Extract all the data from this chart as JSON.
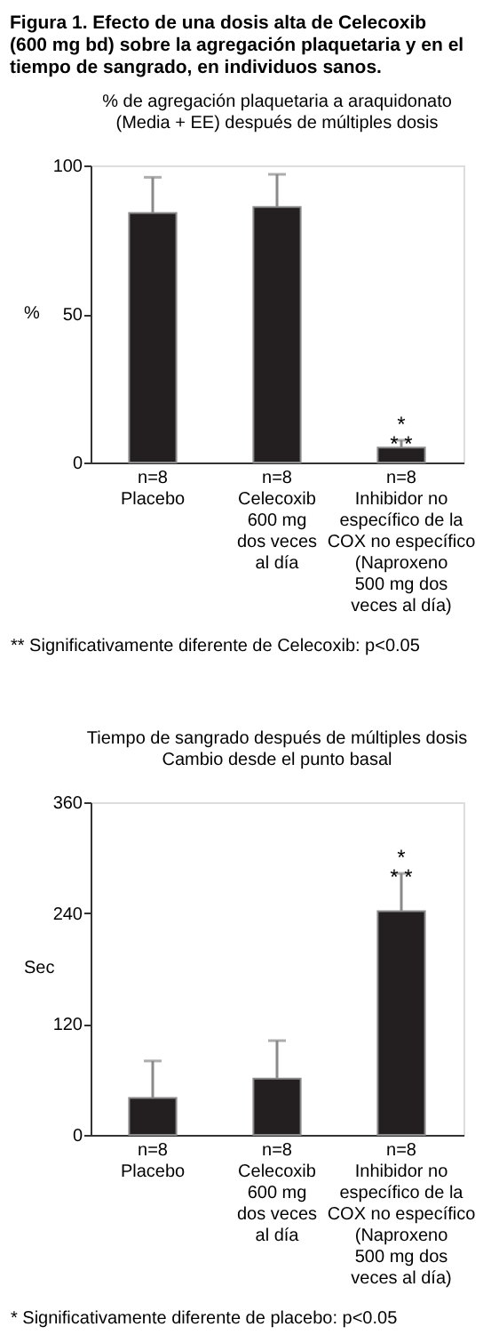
{
  "chart_data": [
    {
      "type": "bar",
      "title": "Figura 1. Efecto de una dosis alta de Celecoxib\n(600 mg bd) sobre la agregación plaquetaria y en el\ntiempo de sangrado, en individuos sanos.",
      "subtitle": "% de agregación plaquetaria a araquidonato\n(Media + EE) después de múltiples dosis",
      "ylabel": "%",
      "categories": [
        "n=8\nPlacebo",
        "n=8\nCelecoxib\n600 mg\ndos veces\nal día",
        "n=8\nInhibidor no\nespecífico de la\nCOX no específico\n(Naproxeno\n500 mg dos\nveces al día)"
      ],
      "series": [
        {
          "color": "#231f20",
          "values": [
            84,
            86,
            5
          ],
          "errors": [
            [
              84,
              96
            ],
            [
              86,
              97
            ],
            [
              5,
              7.5
            ]
          ]
        }
      ],
      "ylim": [
        0,
        100
      ],
      "yticks": [
        0,
        50,
        100
      ],
      "grid": false,
      "annotations": [
        {
          "text": "*\n* *",
          "x": "n=8\nInhibidor no\nespecífico de la\nCOX no específico\n(Naproxeno\n500 mg dos\nveces al día)",
          "y": 7.5
        },
        "** Significativamente diferente de Celecoxib: p<0.05"
      ]
    },
    {
      "type": "bar",
      "title": "Tiempo de sangrado después de múltiples dosis\nCambio desde el punto basal",
      "ylabel": "Sec",
      "categories": [
        "n=8\nPlacebo",
        "n=8\nCelecoxib\n600 mg\ndos veces\nal día",
        "n=8\nInhibidor no\nespecífico de la\nCOX no específico\n(Naproxeno\n500 mg dos\nveces al día)"
      ],
      "series": [
        {
          "color": "#231f20",
          "values": [
            40,
            61,
            242
          ],
          "errors": [
            [
              40,
              80
            ],
            [
              61,
              102
            ],
            [
              242,
              283
            ]
          ]
        }
      ],
      "ylim": [
        0,
        360
      ],
      "yticks": [
        0,
        120,
        240,
        360
      ],
      "grid": false,
      "annotations": [
        {
          "text": "*\n* *",
          "x": "n=8\nInhibidor no\nespecífico de la\nCOX no específico\n(Naproxeno\n500 mg dos\nveces al día)",
          "y": 283
        },
        "* Significativamente diferente de placebo: p<0.05"
      ]
    }
  ]
}
